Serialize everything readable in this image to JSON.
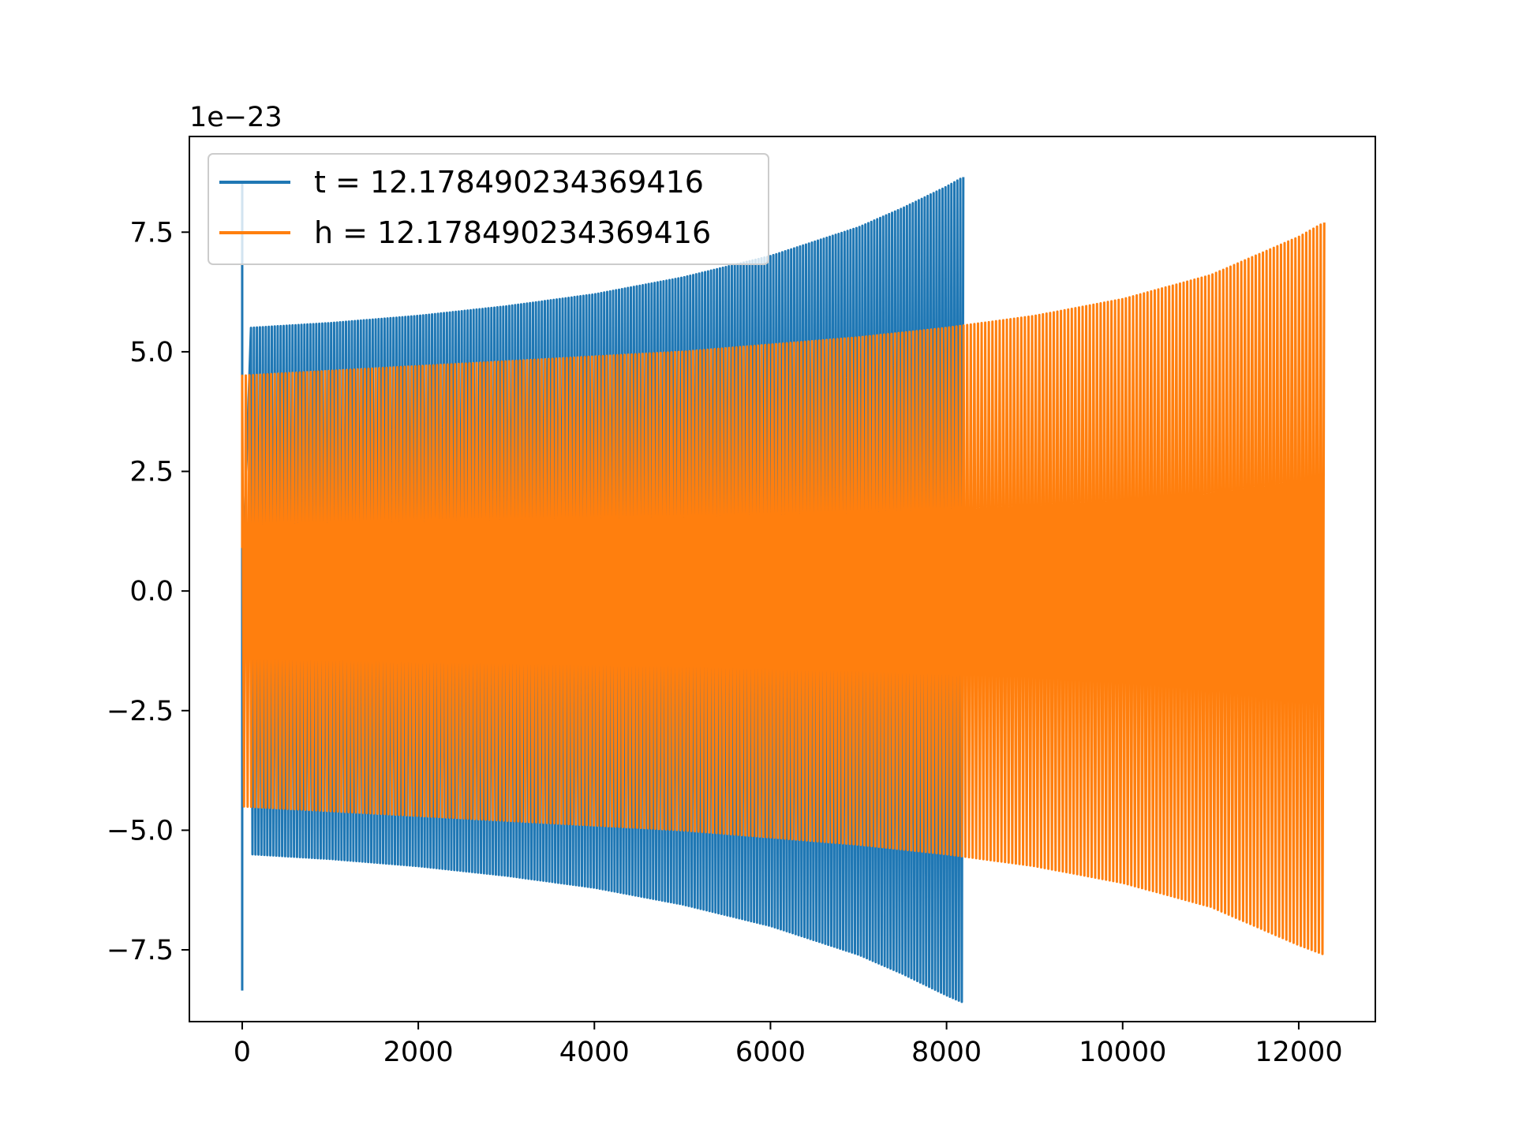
{
  "chart_data": {
    "type": "line",
    "title": "",
    "xlabel": "",
    "ylabel": "",
    "y_offset_label": "1e−23",
    "xlim": [
      -600,
      12870
    ],
    "ylim": [
      -9.0,
      9.5
    ],
    "x_ticks": [
      0,
      2000,
      4000,
      6000,
      8000,
      10000,
      12000
    ],
    "x_tick_labels": [
      "0",
      "2000",
      "4000",
      "6000",
      "8000",
      "10000",
      "12000"
    ],
    "y_ticks": [
      7.5,
      5.0,
      2.5,
      0.0,
      -2.5,
      -5.0,
      -7.5
    ],
    "y_tick_labels": [
      "7.5",
      "5.0",
      "2.5",
      "0.0",
      "−2.5",
      "−5.0",
      "−7.5"
    ],
    "grid": false,
    "legend_position": "top-left",
    "series": [
      {
        "name": "t = 12.178490234369416",
        "color": "#1f77b4",
        "x_range": [
          0,
          8190
        ],
        "initial_spike": {
          "x": 0,
          "max": 8.5,
          "min": -8.35
        },
        "envelope": {
          "x": [
            100,
            1000,
            2000,
            3000,
            4000,
            5000,
            6000,
            7000,
            7500,
            8000,
            8190
          ],
          "upper": [
            5.5,
            5.6,
            5.75,
            5.95,
            6.2,
            6.55,
            7.0,
            7.6,
            8.0,
            8.45,
            8.65
          ],
          "lower": [
            -5.5,
            -5.6,
            -5.75,
            -5.95,
            -6.2,
            -6.55,
            -7.0,
            -7.6,
            -8.0,
            -8.45,
            -8.6
          ]
        },
        "visible_cycles": 240
      },
      {
        "name": "h = 12.178490234369416",
        "color": "#ff7f0e",
        "x_range": [
          0,
          12290
        ],
        "initial_value": 0.9,
        "envelope": {
          "x": [
            0,
            1000,
            2000,
            3000,
            4000,
            5000,
            6000,
            7000,
            8000,
            9000,
            10000,
            11000,
            12000,
            12290
          ],
          "upper": [
            4.5,
            4.6,
            4.7,
            4.8,
            4.9,
            5.0,
            5.15,
            5.3,
            5.5,
            5.75,
            6.1,
            6.6,
            7.4,
            7.7
          ],
          "lower": [
            -4.5,
            -4.6,
            -4.7,
            -4.8,
            -4.9,
            -5.0,
            -5.15,
            -5.3,
            -5.5,
            -5.75,
            -6.1,
            -6.6,
            -7.4,
            -7.6
          ]
        },
        "visible_cycles": 300
      }
    ]
  }
}
